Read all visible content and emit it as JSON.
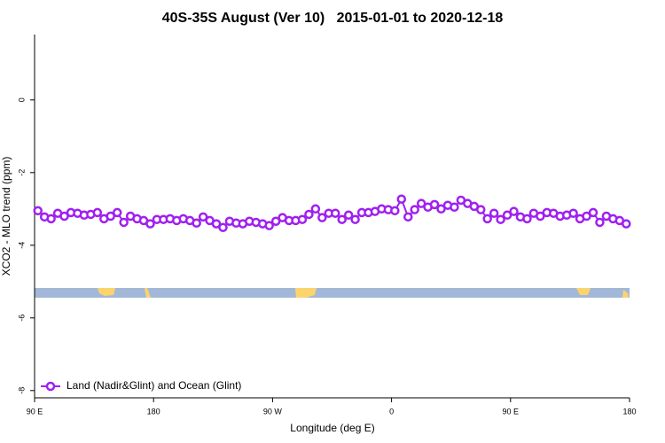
{
  "chart_data": {
    "type": "line",
    "title": "40S-35S August (Ver 10)   2015-01-01 to 2020-12-18",
    "x_label": "Longitude (deg E)",
    "y_label": "XCO2 - MLO trend (ppm)",
    "xlim": [
      90,
      540
    ],
    "ylim": [
      -8.2,
      1.8
    ],
    "xticks": [
      {
        "value": 90,
        "label": "90 E"
      },
      180,
      {
        "value": 270,
        "label": "90 W"
      },
      {
        "value": 360,
        "label": "0"
      },
      {
        "value": 450,
        "label": "90 E"
      },
      {
        "value": 540,
        "label": "180"
      }
    ],
    "yticks": [
      0,
      -2,
      -4,
      -6,
      -8
    ],
    "grid": false,
    "legend": "bottom-left",
    "x": [
      92.5,
      97.5,
      102.5,
      107.5,
      112.5,
      117.5,
      122.5,
      127.5,
      132.5,
      137.5,
      142.5,
      147.5,
      152.5,
      157.5,
      162.5,
      167.5,
      172.5,
      177.5,
      182.5,
      187.5,
      192.5,
      197.5,
      202.5,
      207.5,
      212.5,
      217.5,
      222.5,
      227.5,
      232.5,
      237.5,
      242.5,
      247.5,
      252.5,
      257.5,
      262.5,
      267.5,
      272.5,
      277.5,
      282.5,
      287.5,
      292.5,
      297.5,
      302.5,
      307.5,
      312.5,
      317.5,
      322.5,
      327.5,
      332.5,
      337.5,
      342.5,
      347.5,
      352.5,
      357.5,
      362.5,
      367.5,
      372.5,
      377.5,
      382.5,
      387.5,
      392.5,
      397.5,
      402.5,
      407.5,
      412.5,
      417.5,
      422.5,
      427.5,
      432.5,
      437.5,
      442.5,
      447.5,
      452.5,
      457.5,
      462.5,
      467.5,
      472.5,
      477.5,
      482.5,
      487.5,
      492.5,
      497.5,
      502.5,
      507.5,
      512.5,
      517.5,
      522.5,
      527.5,
      532.5,
      537.5
    ],
    "series": [
      {
        "name": "Land (Nadir&Glint) and Ocean (Glint)",
        "color": "#a020f0",
        "values": [
          -3.05,
          -3.22,
          -3.27,
          -3.12,
          -3.2,
          -3.1,
          -3.12,
          -3.17,
          -3.15,
          -3.1,
          -3.27,
          -3.2,
          -3.1,
          -3.37,
          -3.2,
          -3.27,
          -3.32,
          -3.41,
          -3.29,
          -3.29,
          -3.27,
          -3.32,
          -3.27,
          -3.32,
          -3.39,
          -3.22,
          -3.32,
          -3.41,
          -3.51,
          -3.34,
          -3.39,
          -3.41,
          -3.34,
          -3.37,
          -3.41,
          -3.46,
          -3.34,
          -3.24,
          -3.32,
          -3.32,
          -3.29,
          -3.15,
          -3.0,
          -3.24,
          -3.12,
          -3.12,
          -3.29,
          -3.17,
          -3.29,
          -3.1,
          -3.1,
          -3.07,
          -3.0,
          -3.02,
          -3.05,
          -2.73,
          -3.22,
          -3.02,
          -2.85,
          -2.95,
          -2.88,
          -3.0,
          -2.9,
          -2.95,
          -2.76,
          -2.85,
          -2.93,
          -3.02,
          -3.27,
          -3.12,
          -3.29,
          -3.17,
          -3.07,
          -3.22,
          -3.27,
          -3.12,
          -3.2,
          -3.1,
          -3.12,
          -3.2,
          -3.17,
          -3.12,
          -3.27,
          -3.2,
          -3.1,
          -3.37,
          -3.2,
          -3.27,
          -3.32,
          -3.41
        ]
      }
    ]
  }
}
